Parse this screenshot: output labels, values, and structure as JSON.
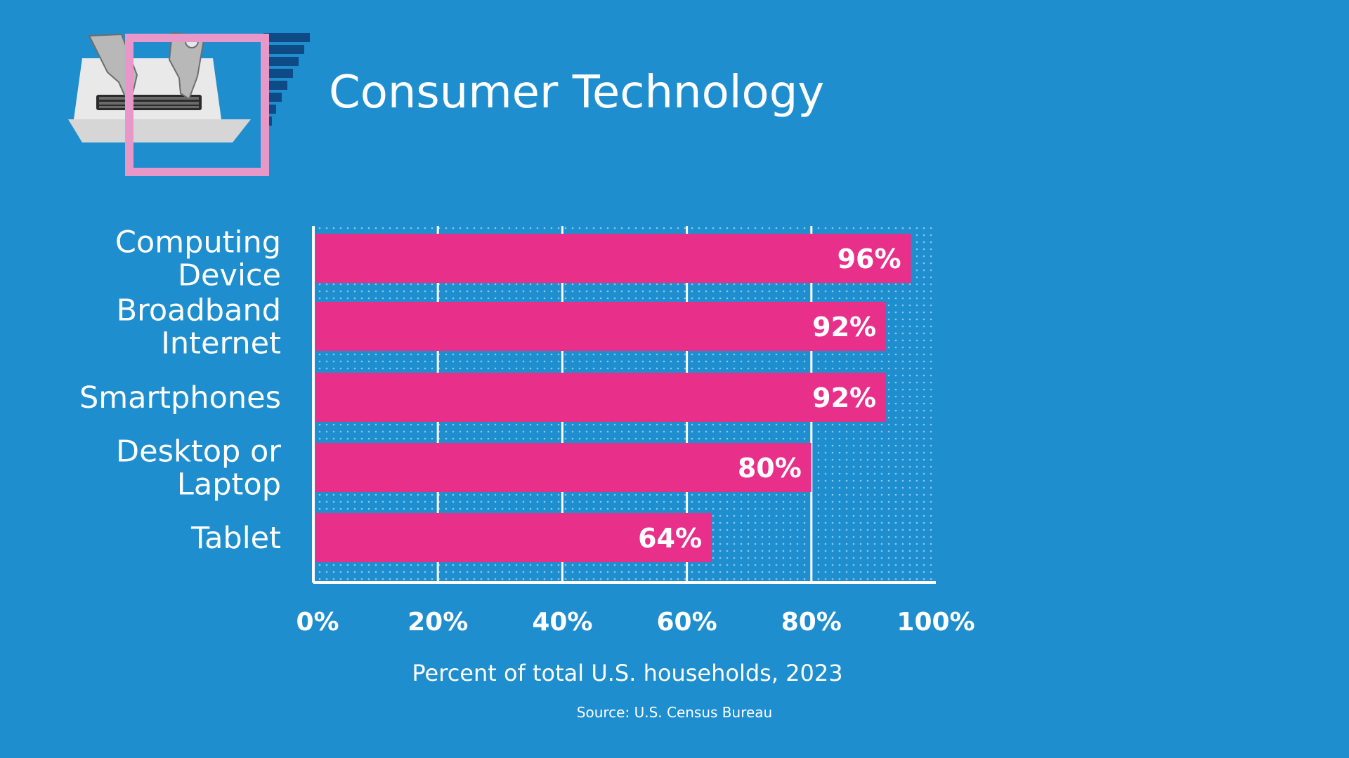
{
  "header": {
    "title": "Consumer Technology"
  },
  "logo": {
    "icon": "laptop-typing-illustration-icon",
    "frame_color": "#e898c8",
    "stairs_color": "#0e4a86"
  },
  "chart_data": {
    "type": "bar",
    "orientation": "horizontal",
    "title": "Consumer Technology",
    "categories": [
      [
        "Computing",
        "Device"
      ],
      [
        "Broadband",
        "Internet"
      ],
      [
        "Smartphones"
      ],
      [
        "Desktop or",
        "Laptop"
      ],
      [
        "Tablet"
      ]
    ],
    "values": [
      96,
      92,
      92,
      80,
      64
    ],
    "value_labels": [
      "96%",
      "92%",
      "92%",
      "80%",
      "64%"
    ],
    "xlim": [
      0,
      100
    ],
    "x_ticks": [
      0,
      20,
      40,
      60,
      80,
      100
    ],
    "x_tick_labels": [
      "0%",
      "20%",
      "40%",
      "60%",
      "80%",
      "100%"
    ],
    "xlabel": "Percent of total U.S. households, 2023",
    "ylabel": "",
    "grid": true,
    "colors": {
      "background": "#1e8ecf",
      "bar": "#e8308a",
      "grid": "#ffffff",
      "text": "#ffffff"
    }
  },
  "footer": {
    "source": "Source: U.S. Census Bureau"
  }
}
